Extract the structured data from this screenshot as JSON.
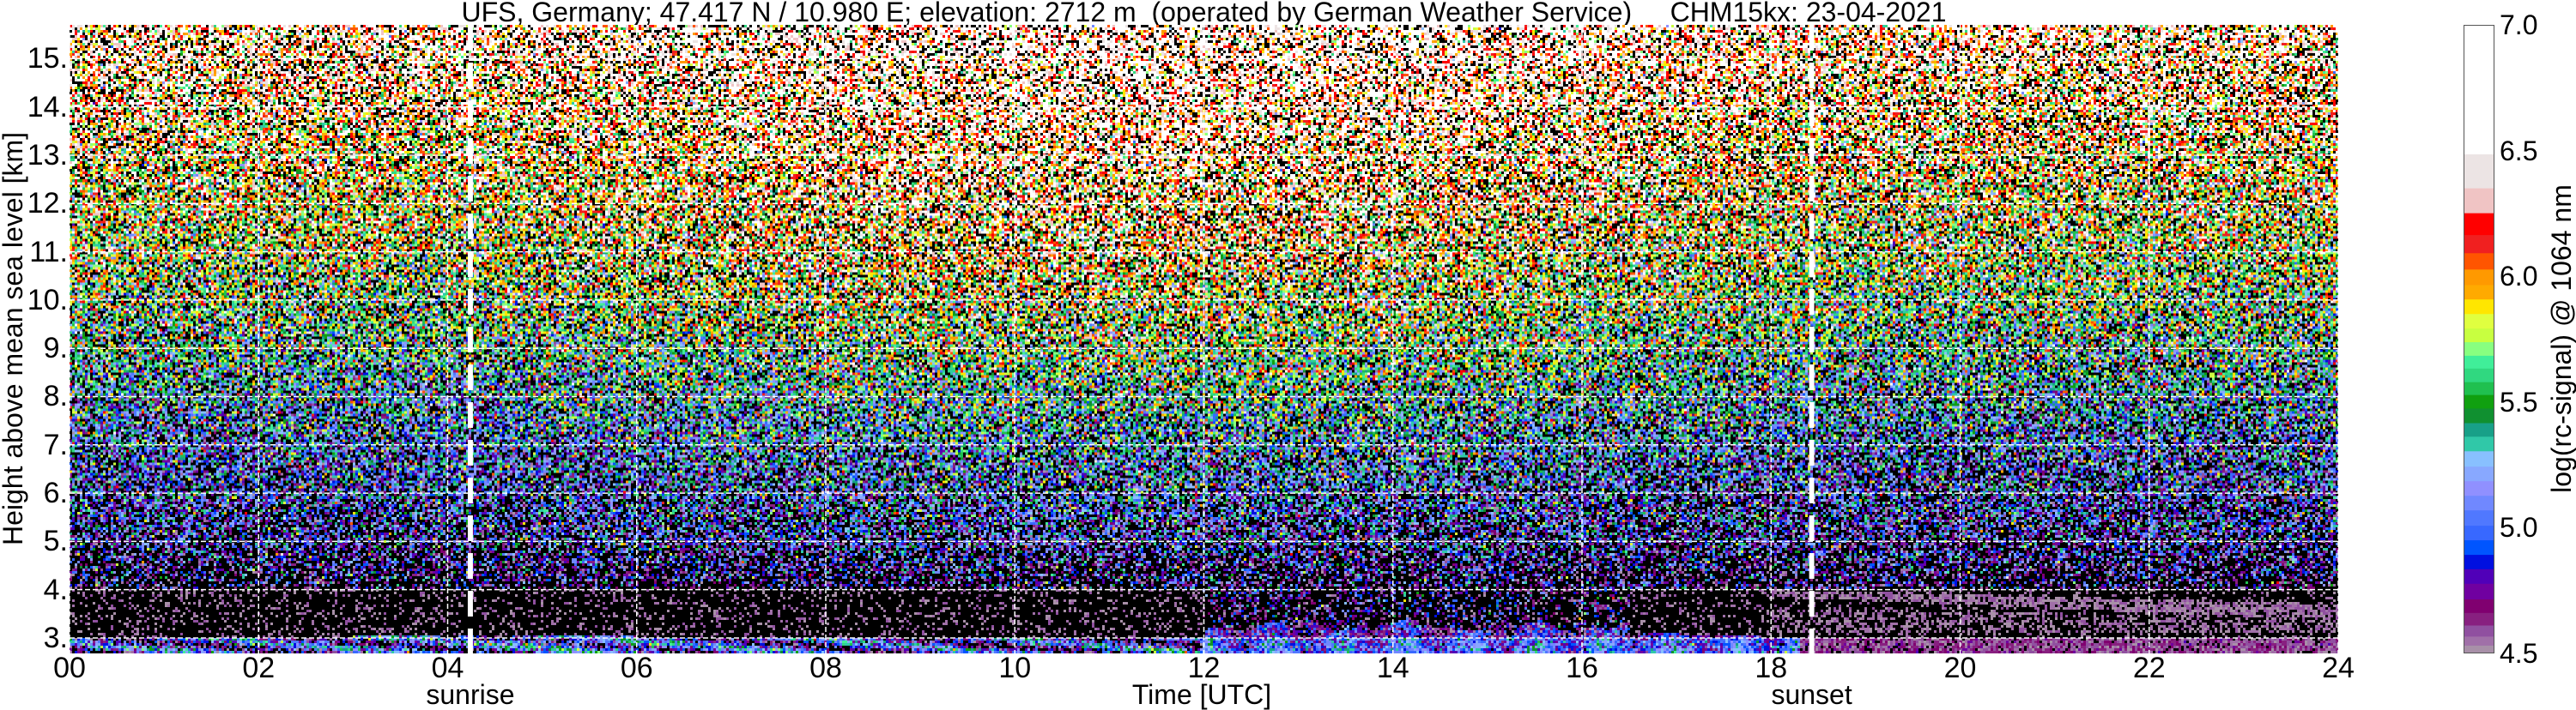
{
  "chart_data": {
    "type": "heatmap",
    "title": "UFS, Germany; 47.417 N / 10.980 E; elevation: 2712 m  (operated by German Weather Service)     CHM15kx: 23-04-2021",
    "xlabel": "Time [UTC]",
    "ylabel": "Height above mean sea level [km]",
    "colorbar_label": "log(rc-signal) @ 1064 nm",
    "xlim": [
      0,
      24
    ],
    "ylim": [
      2.68,
      15.7
    ],
    "clim": [
      4.5,
      7.0
    ],
    "x_ticks": [
      0,
      2,
      4,
      6,
      8,
      10,
      12,
      14,
      16,
      18,
      20,
      22,
      24
    ],
    "x_tick_labels": [
      "00",
      "02",
      "04",
      "06",
      "08",
      "10",
      "12",
      "14",
      "16",
      "18",
      "20",
      "22",
      "24"
    ],
    "y_ticks": [
      3,
      4,
      5,
      6,
      7,
      8,
      9,
      10,
      11,
      12,
      13,
      14,
      15
    ],
    "y_tick_labels": [
      "3.",
      "4.",
      "5.",
      "6.",
      "7.",
      "8.",
      "9.",
      "10.",
      "11.",
      "12.",
      "13.",
      "14.",
      "15."
    ],
    "colorbar_ticks": [
      "4.5",
      "5.0",
      "5.5",
      "6.0",
      "6.5",
      "7.0"
    ],
    "grid": true,
    "annotations": [
      {
        "label": "sunrise",
        "time_utc": 4.24
      },
      {
        "label": "sunset",
        "time_utc": 18.43
      }
    ],
    "colorbar_levels": {
      "bounds": [
        4.5,
        4.536,
        4.572,
        4.616,
        4.666,
        4.72,
        4.782,
        4.84,
        4.897,
        4.955,
        5.013,
        5.074,
        5.132,
        5.19,
        5.248,
        5.309,
        5.367,
        5.421,
        5.479,
        5.533,
        5.584,
        5.638,
        5.689,
        5.743,
        5.797,
        5.855,
        5.913,
        5.97,
        6.032,
        6.097,
        6.169,
        6.256,
        6.355,
        6.49,
        7.0
      ],
      "colors": [
        "#a890a8",
        "#a070a8",
        "#9050a0",
        "#882080",
        "#800070",
        "#7000a0",
        "#5000b8",
        "#0010e0",
        "#0055ff",
        "#3868ff",
        "#5078ff",
        "#7088ff",
        "#9090ff",
        "#88a8ff",
        "#88c0ff",
        "#30c8a8",
        "#18a088",
        "#109030",
        "#10a010",
        "#20c050",
        "#30d880",
        "#40ee99",
        "#88ff80",
        "#c8ff40",
        "#e0ff40",
        "#ffe600",
        "#ffaa00",
        "#ff9900",
        "#ff5500",
        "#f02020",
        "#ff0000",
        "#f0c4c4",
        "#ece4e4",
        "#ffffff"
      ]
    },
    "below_min_color": "#000000",
    "approx_structure": {
      "surface_layer_km": [
        2.68,
        3.0
      ],
      "daytime_boundary_layer_top_km": 3.3,
      "daytime_boundary_layer_hours": [
        12,
        16.5
      ],
      "evening_residual_layer_km": [
        3.4,
        4.0
      ],
      "mean_signal_by_height": {
        "height_km": [
          3.5,
          5,
          7,
          9,
          11,
          13,
          15
        ],
        "value": [
          4.3,
          4.75,
          5.05,
          5.45,
          5.8,
          6.05,
          6.3
        ]
      }
    }
  },
  "colors": {
    "background": "#ffffff",
    "grid": "#ffffff",
    "sun_lines": "#ffffff"
  }
}
